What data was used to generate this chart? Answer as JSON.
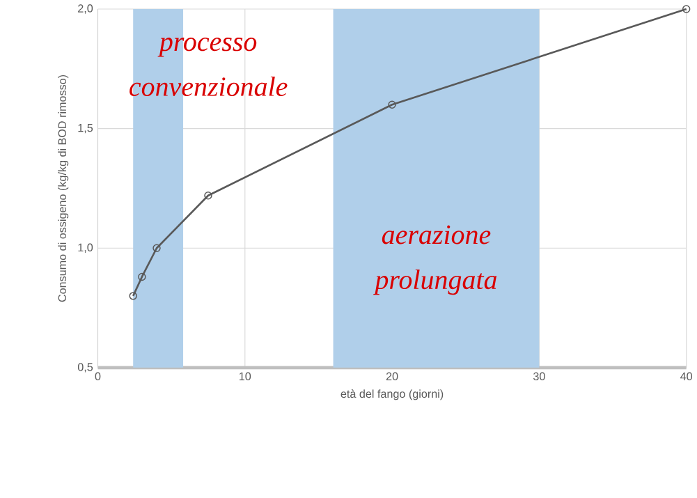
{
  "chart_data": {
    "type": "line",
    "x": [
      2.4,
      3,
      4,
      7.5,
      20,
      40
    ],
    "values": [
      0.8,
      0.88,
      1.0,
      1.22,
      1.6,
      2.0
    ],
    "color": "#595959",
    "marker": "circle",
    "line_style": "solid",
    "xlabel": "età del fango (giorni)",
    "ylabel": "Consumo di ossigeno (kg/kg di BOD rimosso)",
    "xlim": [
      0,
      40
    ],
    "ylim": [
      0.5,
      2.0
    ],
    "xticks": [
      0,
      10,
      20,
      30,
      40
    ],
    "yticks": [
      {
        "value": 0.5,
        "label": "0,5"
      },
      {
        "value": 1.0,
        "label": "1,0"
      },
      {
        "value": 1.5,
        "label": "1,5"
      },
      {
        "value": 2.0,
        "label": "2,0"
      }
    ],
    "grid": true,
    "bands": [
      {
        "axis": "x",
        "from": 2.4,
        "to": 5.8,
        "label": "processo convenzionale",
        "color": "#b0cfea"
      },
      {
        "axis": "x",
        "from": 16,
        "to": 30,
        "label": "aerazione prolungata",
        "color": "#b0cfea"
      }
    ]
  }
}
